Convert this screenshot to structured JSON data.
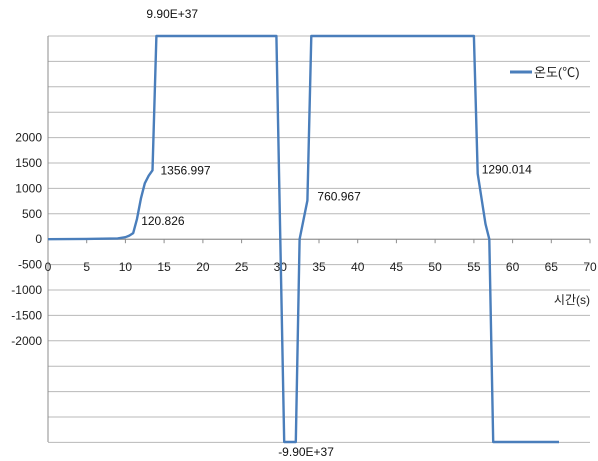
{
  "chart_data": {
    "type": "line",
    "title": "",
    "xlabel": "시간(s)",
    "ylabel": "",
    "xlim": [
      0,
      70
    ],
    "x_ticks": [
      0,
      5,
      10,
      15,
      20,
      25,
      30,
      35,
      40,
      45,
      50,
      55,
      60,
      65,
      70
    ],
    "x_tick_labels": [
      "0",
      "5",
      "10",
      "15",
      "20",
      "25",
      "30",
      "35",
      "40",
      "45",
      "50",
      "55",
      "60",
      "65",
      "70"
    ],
    "y_ticks": [
      2000,
      1500,
      1000,
      500,
      0,
      -500,
      -1000,
      -1500,
      -2000
    ],
    "y_tick_labels": [
      "2000",
      "1500",
      "1000",
      "500",
      "0",
      "-500",
      "-1000",
      "-1500",
      "-2000"
    ],
    "grid": true,
    "legend_position": "top-right",
    "series_color": "#4a7ebb",
    "series": [
      {
        "name": "온도(℃)",
        "points": [
          [
            0,
            0
          ],
          [
            5,
            5
          ],
          [
            9,
            15
          ],
          [
            10,
            40
          ],
          [
            10.5,
            70
          ],
          [
            11,
            120.826
          ],
          [
            11.5,
            400
          ],
          [
            12,
            800
          ],
          [
            12.5,
            1100
          ],
          [
            13,
            1250
          ],
          [
            13.5,
            1356.997
          ],
          [
            14,
            9.9e+37
          ],
          [
            29.5,
            9.9e+37
          ],
          [
            30,
            0
          ],
          [
            30.5,
            -9.9e+37
          ],
          [
            32,
            -9.9e+37
          ],
          [
            32.5,
            0
          ],
          [
            33.5,
            760.967
          ],
          [
            34,
            9.9e+37
          ],
          [
            55,
            9.9e+37
          ],
          [
            55.5,
            1290.014
          ],
          [
            56.5,
            300
          ],
          [
            57,
            0
          ],
          [
            57.5,
            -9.9e+37
          ],
          [
            66,
            -9.9e+37
          ]
        ]
      }
    ],
    "annotations": [
      {
        "text": "9.90E+37",
        "x": 14,
        "y": 9.9e+37
      },
      {
        "text": "1356.997",
        "x": 13.5,
        "y": 1356.997
      },
      {
        "text": "120.826",
        "x": 11,
        "y": 120.826
      },
      {
        "text": "-9.90E+37",
        "x": 30.5,
        "y": -9.9e+37
      },
      {
        "text": "760.967",
        "x": 33.5,
        "y": 760.967
      },
      {
        "text": "1290.014",
        "x": 55.5,
        "y": 1290.014
      }
    ]
  }
}
